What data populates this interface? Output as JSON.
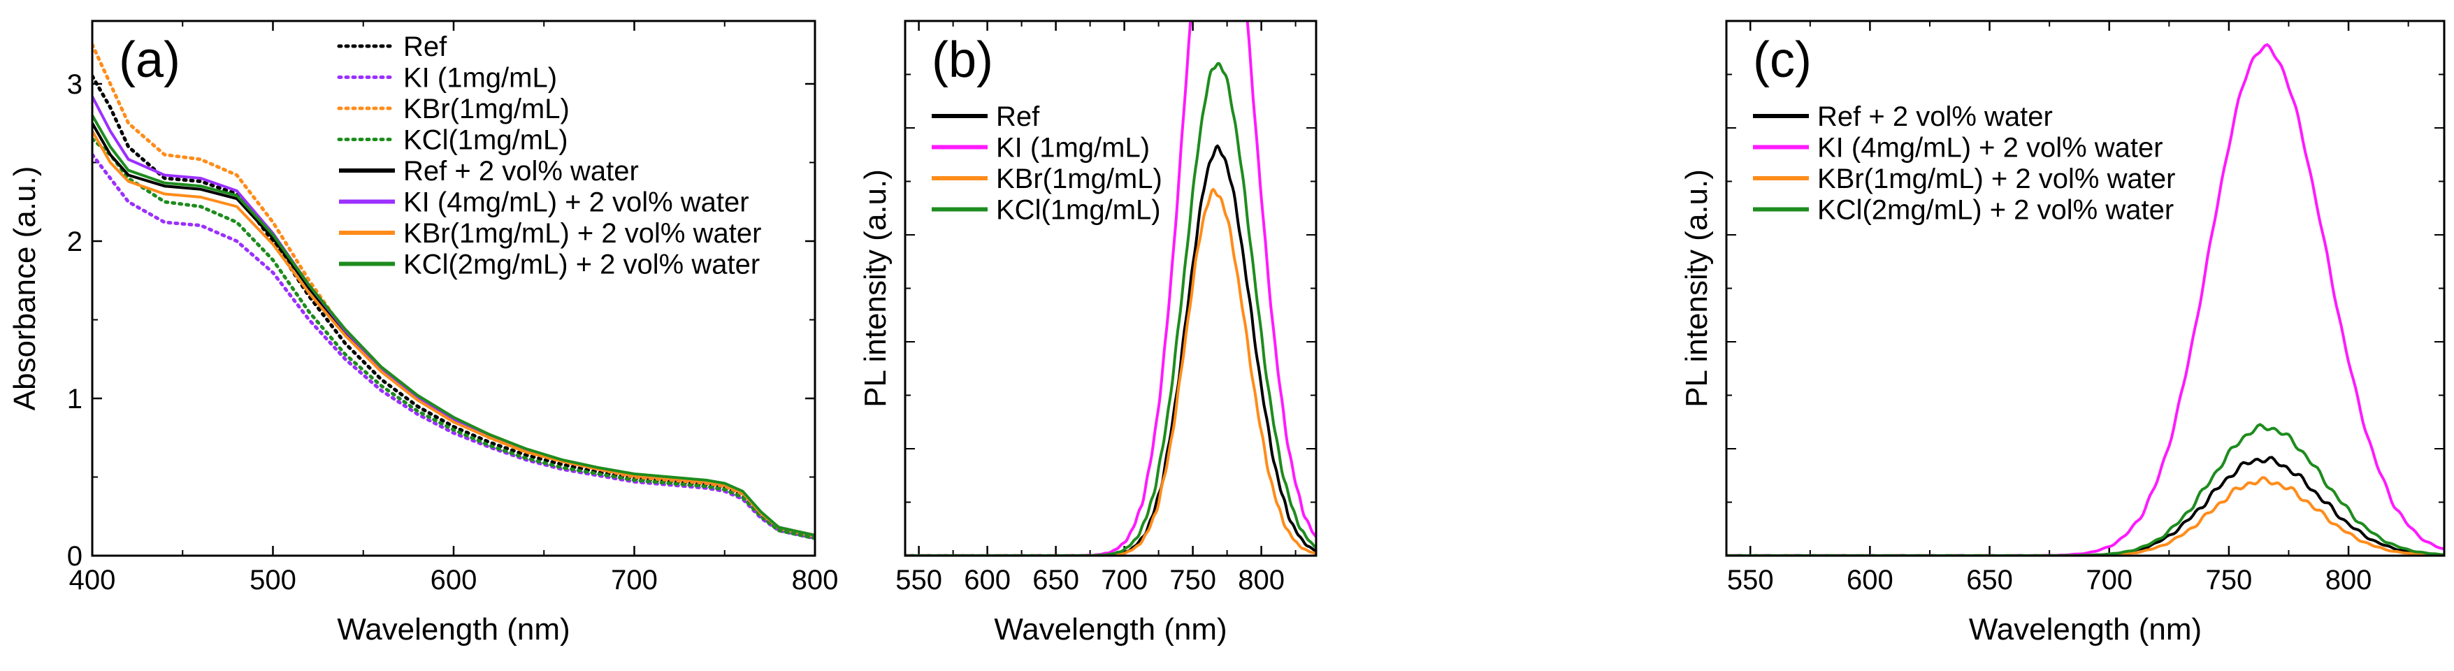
{
  "chart_data": [
    {
      "type": "line",
      "panel_label": "(a)",
      "xlabel": "Wavelength (nm)",
      "ylabel": "Absorbance (a.u.)",
      "xlim": [
        400,
        800
      ],
      "ylim": [
        0,
        3.4
      ],
      "xticks": [
        "400",
        "500",
        "600",
        "700",
        "800"
      ],
      "yticks": [
        "0",
        "1",
        "2",
        "3"
      ],
      "legend_position": "top-right",
      "series": [
        {
          "name": "Ref",
          "color": "#000000",
          "style": "dotted",
          "x": [
            400,
            410,
            420,
            440,
            460,
            480,
            500,
            520,
            540,
            560,
            580,
            600,
            620,
            640,
            660,
            680,
            700,
            720,
            740,
            750,
            760,
            770,
            780,
            800
          ],
          "y": [
            3.05,
            2.85,
            2.6,
            2.4,
            2.38,
            2.3,
            2.0,
            1.65,
            1.35,
            1.12,
            0.95,
            0.82,
            0.72,
            0.64,
            0.58,
            0.53,
            0.49,
            0.47,
            0.45,
            0.43,
            0.38,
            0.25,
            0.17,
            0.12
          ]
        },
        {
          "name": "KI  (1mg/mL)",
          "color": "#9b30ff",
          "style": "dotted",
          "x": [
            400,
            410,
            420,
            440,
            460,
            480,
            500,
            520,
            540,
            560,
            580,
            600,
            620,
            640,
            660,
            680,
            700,
            720,
            740,
            750,
            760,
            770,
            780,
            800
          ],
          "y": [
            2.55,
            2.4,
            2.25,
            2.12,
            2.1,
            2.0,
            1.8,
            1.5,
            1.25,
            1.05,
            0.9,
            0.78,
            0.69,
            0.61,
            0.55,
            0.51,
            0.47,
            0.45,
            0.43,
            0.41,
            0.36,
            0.24,
            0.16,
            0.11
          ]
        },
        {
          "name": "KBr(1mg/mL)",
          "color": "#ff8c1a",
          "style": "dotted",
          "x": [
            400,
            410,
            420,
            440,
            460,
            480,
            500,
            520,
            540,
            560,
            580,
            600,
            620,
            640,
            660,
            680,
            700,
            720,
            740,
            750,
            760,
            770,
            780,
            800
          ],
          "y": [
            3.25,
            3.0,
            2.75,
            2.55,
            2.52,
            2.42,
            2.12,
            1.75,
            1.42,
            1.18,
            1.0,
            0.86,
            0.75,
            0.66,
            0.6,
            0.55,
            0.5,
            0.48,
            0.46,
            0.44,
            0.39,
            0.26,
            0.17,
            0.12
          ]
        },
        {
          "name": "KCl(1mg/mL)",
          "color": "#1e8c1e",
          "style": "dotted",
          "x": [
            400,
            410,
            420,
            440,
            460,
            480,
            500,
            520,
            540,
            560,
            580,
            600,
            620,
            640,
            660,
            680,
            700,
            720,
            740,
            750,
            760,
            770,
            780,
            800
          ],
          "y": [
            2.65,
            2.55,
            2.4,
            2.25,
            2.22,
            2.12,
            1.88,
            1.55,
            1.28,
            1.08,
            0.92,
            0.8,
            0.7,
            0.62,
            0.56,
            0.52,
            0.48,
            0.46,
            0.44,
            0.42,
            0.37,
            0.25,
            0.16,
            0.11
          ]
        },
        {
          "name": "Ref + 2 vol% water",
          "color": "#000000",
          "style": "solid",
          "x": [
            400,
            410,
            420,
            440,
            460,
            480,
            500,
            520,
            540,
            560,
            580,
            600,
            620,
            640,
            660,
            680,
            700,
            720,
            740,
            750,
            760,
            770,
            780,
            800
          ],
          "y": [
            2.75,
            2.55,
            2.42,
            2.35,
            2.33,
            2.27,
            2.02,
            1.7,
            1.42,
            1.18,
            1.0,
            0.86,
            0.76,
            0.67,
            0.6,
            0.55,
            0.51,
            0.49,
            0.47,
            0.45,
            0.4,
            0.27,
            0.18,
            0.13
          ]
        },
        {
          "name": "KI  (4mg/mL) + 2 vol% water",
          "color": "#9b30ff",
          "style": "solid",
          "x": [
            400,
            410,
            420,
            440,
            460,
            480,
            500,
            520,
            540,
            560,
            580,
            600,
            620,
            640,
            660,
            680,
            700,
            720,
            740,
            750,
            760,
            770,
            780,
            800
          ],
          "y": [
            2.92,
            2.7,
            2.52,
            2.42,
            2.4,
            2.32,
            2.05,
            1.72,
            1.43,
            1.19,
            1.01,
            0.87,
            0.76,
            0.67,
            0.6,
            0.55,
            0.51,
            0.49,
            0.47,
            0.45,
            0.4,
            0.27,
            0.18,
            0.13
          ]
        },
        {
          "name": "KBr(1mg/mL) + 2 vol% water",
          "color": "#ff8c1a",
          "style": "solid",
          "x": [
            400,
            410,
            420,
            440,
            460,
            480,
            500,
            520,
            540,
            560,
            580,
            600,
            620,
            640,
            660,
            680,
            700,
            720,
            740,
            750,
            760,
            770,
            780,
            800
          ],
          "y": [
            2.7,
            2.5,
            2.38,
            2.3,
            2.28,
            2.22,
            1.98,
            1.67,
            1.4,
            1.17,
            0.99,
            0.85,
            0.75,
            0.66,
            0.6,
            0.55,
            0.51,
            0.49,
            0.47,
            0.45,
            0.4,
            0.27,
            0.18,
            0.13
          ]
        },
        {
          "name": "KCl(2mg/mL) + 2 vol% water",
          "color": "#1e8c1e",
          "style": "solid",
          "x": [
            400,
            410,
            420,
            440,
            460,
            480,
            500,
            520,
            540,
            560,
            580,
            600,
            620,
            640,
            660,
            680,
            700,
            720,
            740,
            750,
            760,
            770,
            780,
            800
          ],
          "y": [
            2.8,
            2.6,
            2.45,
            2.37,
            2.35,
            2.29,
            2.04,
            1.72,
            1.44,
            1.2,
            1.02,
            0.88,
            0.77,
            0.68,
            0.61,
            0.56,
            0.52,
            0.5,
            0.48,
            0.46,
            0.41,
            0.28,
            0.18,
            0.13
          ]
        }
      ]
    },
    {
      "type": "line",
      "panel_label": "(b)",
      "xlabel": "Wavelength (nm)",
      "ylabel": "PL intensity (a.u.)",
      "xlim": [
        540,
        840
      ],
      "ylim": [
        0,
        100
      ],
      "xticks": [
        "550",
        "600",
        "650",
        "700",
        "750",
        "800"
      ],
      "legend_position": "top-left",
      "series": [
        {
          "name": "Ref",
          "color": "#000000",
          "center": 768,
          "peak": 76,
          "width": 22,
          "skew": 1.1
        },
        {
          "name": "KI  (1mg/mL)",
          "color": "#ff1aff",
          "center": 768,
          "peak": 140,
          "width": 24,
          "skew": 1.1
        },
        {
          "name": "KBr(1mg/mL)",
          "color": "#ff8c1a",
          "center": 766,
          "peak": 68,
          "width": 21,
          "skew": 1.1
        },
        {
          "name": "KCl(1mg/mL)",
          "color": "#1e8c1e",
          "center": 768,
          "peak": 92,
          "width": 23,
          "skew": 1.1
        }
      ]
    },
    {
      "type": "line",
      "panel_label": "(c)",
      "xlabel": "Wavelength (nm)",
      "ylabel": "PL intensity (a.u.)",
      "xlim": [
        540,
        840
      ],
      "ylim": [
        0,
        100
      ],
      "xticks": [
        "550",
        "600",
        "650",
        "700",
        "750",
        "800"
      ],
      "legend_position": "top-left",
      "series": [
        {
          "name": "Ref + 2 vol% water",
          "color": "#000000",
          "center": 764,
          "peak": 18,
          "width": 22,
          "skew": 1.1
        },
        {
          "name": "KI  (4mg/mL) + 2 vol% water",
          "color": "#ff1aff",
          "center": 765,
          "peak": 95,
          "width": 23,
          "skew": 1.1
        },
        {
          "name": "KBr(1mg/mL) + 2 vol% water",
          "color": "#ff8c1a",
          "center": 764,
          "peak": 14,
          "width": 21,
          "skew": 1.1
        },
        {
          "name": "KCl(2mg/mL) + 2 vol% water",
          "color": "#1e8c1e",
          "center": 765,
          "peak": 24,
          "width": 22,
          "skew": 1.1
        }
      ]
    }
  ]
}
